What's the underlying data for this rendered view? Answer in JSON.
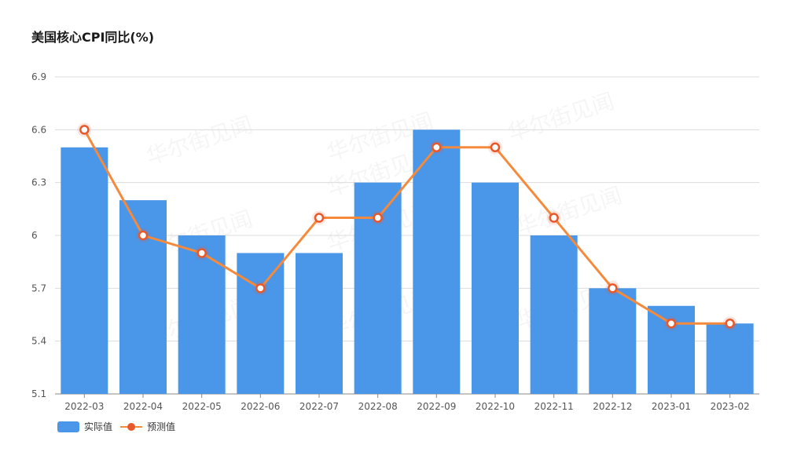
{
  "chart_data": {
    "type": "bar",
    "title": "美国核心CPI同比(%)",
    "categories": [
      "2022-03",
      "2022-04",
      "2022-05",
      "2022-06",
      "2022-07",
      "2022-08",
      "2022-09",
      "2022-10",
      "2022-11",
      "2022-12",
      "2023-01",
      "2023-02"
    ],
    "series": [
      {
        "name": "实际值",
        "type": "bar",
        "color": "#4a96e8",
        "values": [
          6.5,
          6.2,
          6.0,
          5.9,
          5.9,
          6.3,
          6.6,
          6.3,
          6.0,
          5.7,
          5.6,
          5.5
        ]
      },
      {
        "name": "预测值",
        "type": "line",
        "color": "#f58a3c",
        "marker_color": "#e8582a",
        "values": [
          6.6,
          6.0,
          5.9,
          5.7,
          6.1,
          6.1,
          6.5,
          6.5,
          6.1,
          5.7,
          5.5,
          5.5
        ]
      }
    ],
    "y_ticks": [
      "5.1",
      "5.4",
      "5.7",
      "6",
      "6.3",
      "6.6",
      "6.9"
    ],
    "ylim": [
      5.1,
      6.9
    ],
    "xlabel": "",
    "ylabel": "",
    "grid": true,
    "legend_position": "bottom-left",
    "watermark": "华尔街见闻"
  }
}
